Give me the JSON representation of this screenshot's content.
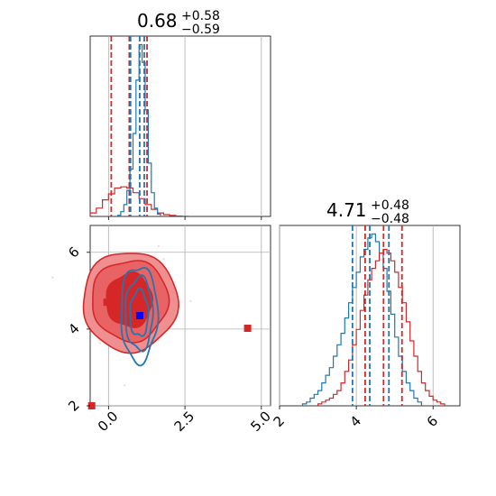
{
  "colors": {
    "red": "#d62728",
    "blue": "#1f77b4",
    "grid": "#b0b0b0",
    "contour_fill_outer": "#f08f90",
    "contour_fill_inner": "#d62728",
    "scatter": "#f4a5bd"
  },
  "panel_top_left": {
    "title": {
      "main": "0.68",
      "plus": "+0.58",
      "minus": "−0.59"
    }
  },
  "panel_bottom_right": {
    "title": {
      "main": "4.71",
      "plus": "+0.48",
      "minus": "−0.48"
    }
  },
  "chart_data": [
    {
      "type": "histogram",
      "panel": "top-left (marginal of x)",
      "xlim": [
        -0.6,
        5.3
      ],
      "grid": true,
      "x_ticks": [
        0.0,
        2.5,
        5.0
      ],
      "series": [
        {
          "color": "#d62728",
          "bin_edges": [
            -1.0,
            -0.8,
            -0.6,
            -0.4,
            -0.2,
            0.0,
            0.2,
            0.4,
            0.6,
            0.8,
            1.0,
            1.2,
            1.4,
            1.6,
            1.8,
            2.0,
            2.2,
            2.4,
            2.6
          ],
          "counts": [
            0.3,
            1,
            3,
            7,
            14,
            19,
            24,
            25,
            24,
            20,
            15,
            10,
            6,
            3,
            1.5,
            0.8,
            0.3,
            0.1
          ],
          "quantile_lines": [
            0.09,
            0.68,
            1.26
          ]
        },
        {
          "color": "#1f77b4",
          "bin_edges": [
            0.3,
            0.4,
            0.5,
            0.6,
            0.7,
            0.8,
            0.9,
            1.0,
            1.1,
            1.2,
            1.3,
            1.4,
            1.5,
            1.6,
            1.7
          ],
          "counts": [
            1,
            4,
            10,
            22,
            40,
            70,
            115,
            145,
            130,
            90,
            45,
            20,
            7,
            2
          ],
          "quantile_lines": [
            0.72,
            1.02,
            1.17
          ]
        }
      ]
    },
    {
      "type": "histogram",
      "panel": "bottom-right (marginal of y)",
      "xlim": [
        2.0,
        6.7
      ],
      "grid": true,
      "x_ticks": [
        2,
        4,
        6
      ],
      "series": [
        {
          "color": "#1f77b4",
          "bin_edges": [
            2.6,
            2.7,
            2.8,
            2.9,
            3.0,
            3.1,
            3.2,
            3.3,
            3.4,
            3.5,
            3.6,
            3.7,
            3.8,
            3.9,
            4.0,
            4.1,
            4.2,
            4.3,
            4.4,
            4.5,
            4.6,
            4.7,
            4.8,
            4.9,
            5.0,
            5.1,
            5.2,
            5.3,
            5.4,
            5.5,
            5.6,
            5.7
          ],
          "counts": [
            0.5,
            1,
            2,
            3,
            4,
            6,
            8,
            10,
            13,
            16,
            19,
            23,
            27,
            31,
            35,
            39,
            41,
            44,
            45,
            43,
            40,
            36,
            30,
            24,
            18,
            13,
            9,
            6,
            4,
            2,
            1
          ],
          "quantile_lines": [
            3.9,
            4.35,
            4.85
          ]
        },
        {
          "color": "#d62728",
          "bin_edges": [
            3.0,
            3.1,
            3.2,
            3.3,
            3.4,
            3.5,
            3.6,
            3.7,
            3.8,
            3.9,
            4.0,
            4.1,
            4.2,
            4.3,
            4.4,
            4.5,
            4.6,
            4.7,
            4.8,
            4.9,
            5.0,
            5.1,
            5.2,
            5.3,
            5.4,
            5.5,
            5.6,
            5.7,
            5.8,
            5.9,
            6.0,
            6.1,
            6.2,
            6.3
          ],
          "counts": [
            0.5,
            1,
            1.5,
            2,
            3,
            4,
            6,
            9,
            12,
            16,
            20,
            25,
            29,
            33,
            36,
            38,
            40,
            41,
            40,
            38,
            35,
            31,
            27,
            22,
            17,
            13,
            9,
            6,
            4,
            2.5,
            1.5,
            1,
            0.5
          ],
          "quantile_lines": [
            4.23,
            4.71,
            5.19
          ]
        }
      ]
    },
    {
      "type": "scatter",
      "panel": "bottom-left (joint x vs y)",
      "xlim": [
        -0.6,
        5.3
      ],
      "ylim": [
        2.0,
        6.7
      ],
      "grid": true,
      "x_ticks": [
        0.0,
        2.5,
        5.0
      ],
      "y_ticks": [
        2,
        4,
        6
      ],
      "red_contours": [
        {
          "level": "outer",
          "cx": 0.7,
          "cy": 4.72,
          "rx": 1.55,
          "ry": 1.3
        },
        {
          "level": "middle",
          "cx": 0.7,
          "cy": 4.75,
          "rx": 1.25,
          "ry": 1.05
        },
        {
          "level": "inner",
          "cx": 0.68,
          "cy": 4.75,
          "rx": 0.75,
          "ry": 0.7
        }
      ],
      "blue_contours": [
        {
          "level": "outer",
          "cx": 1.0,
          "cy": 4.4,
          "rx": 0.6,
          "ry": 1.25
        },
        {
          "level": "middle",
          "cx": 1.0,
          "cy": 4.4,
          "rx": 0.45,
          "ry": 0.95
        },
        {
          "level": "inner",
          "cx": 1.0,
          "cy": 4.4,
          "rx": 0.3,
          "ry": 0.6
        }
      ],
      "markers": [
        {
          "color": "#d62728",
          "x": -0.05,
          "y": 4.7
        },
        {
          "color": "#0000ff",
          "x": 1.02,
          "y": 4.35
        },
        {
          "color": "#d62728",
          "x": 4.55,
          "y": 4.02
        },
        {
          "color": "#d62728",
          "x": -0.55,
          "y": 2.0
        }
      ]
    }
  ]
}
